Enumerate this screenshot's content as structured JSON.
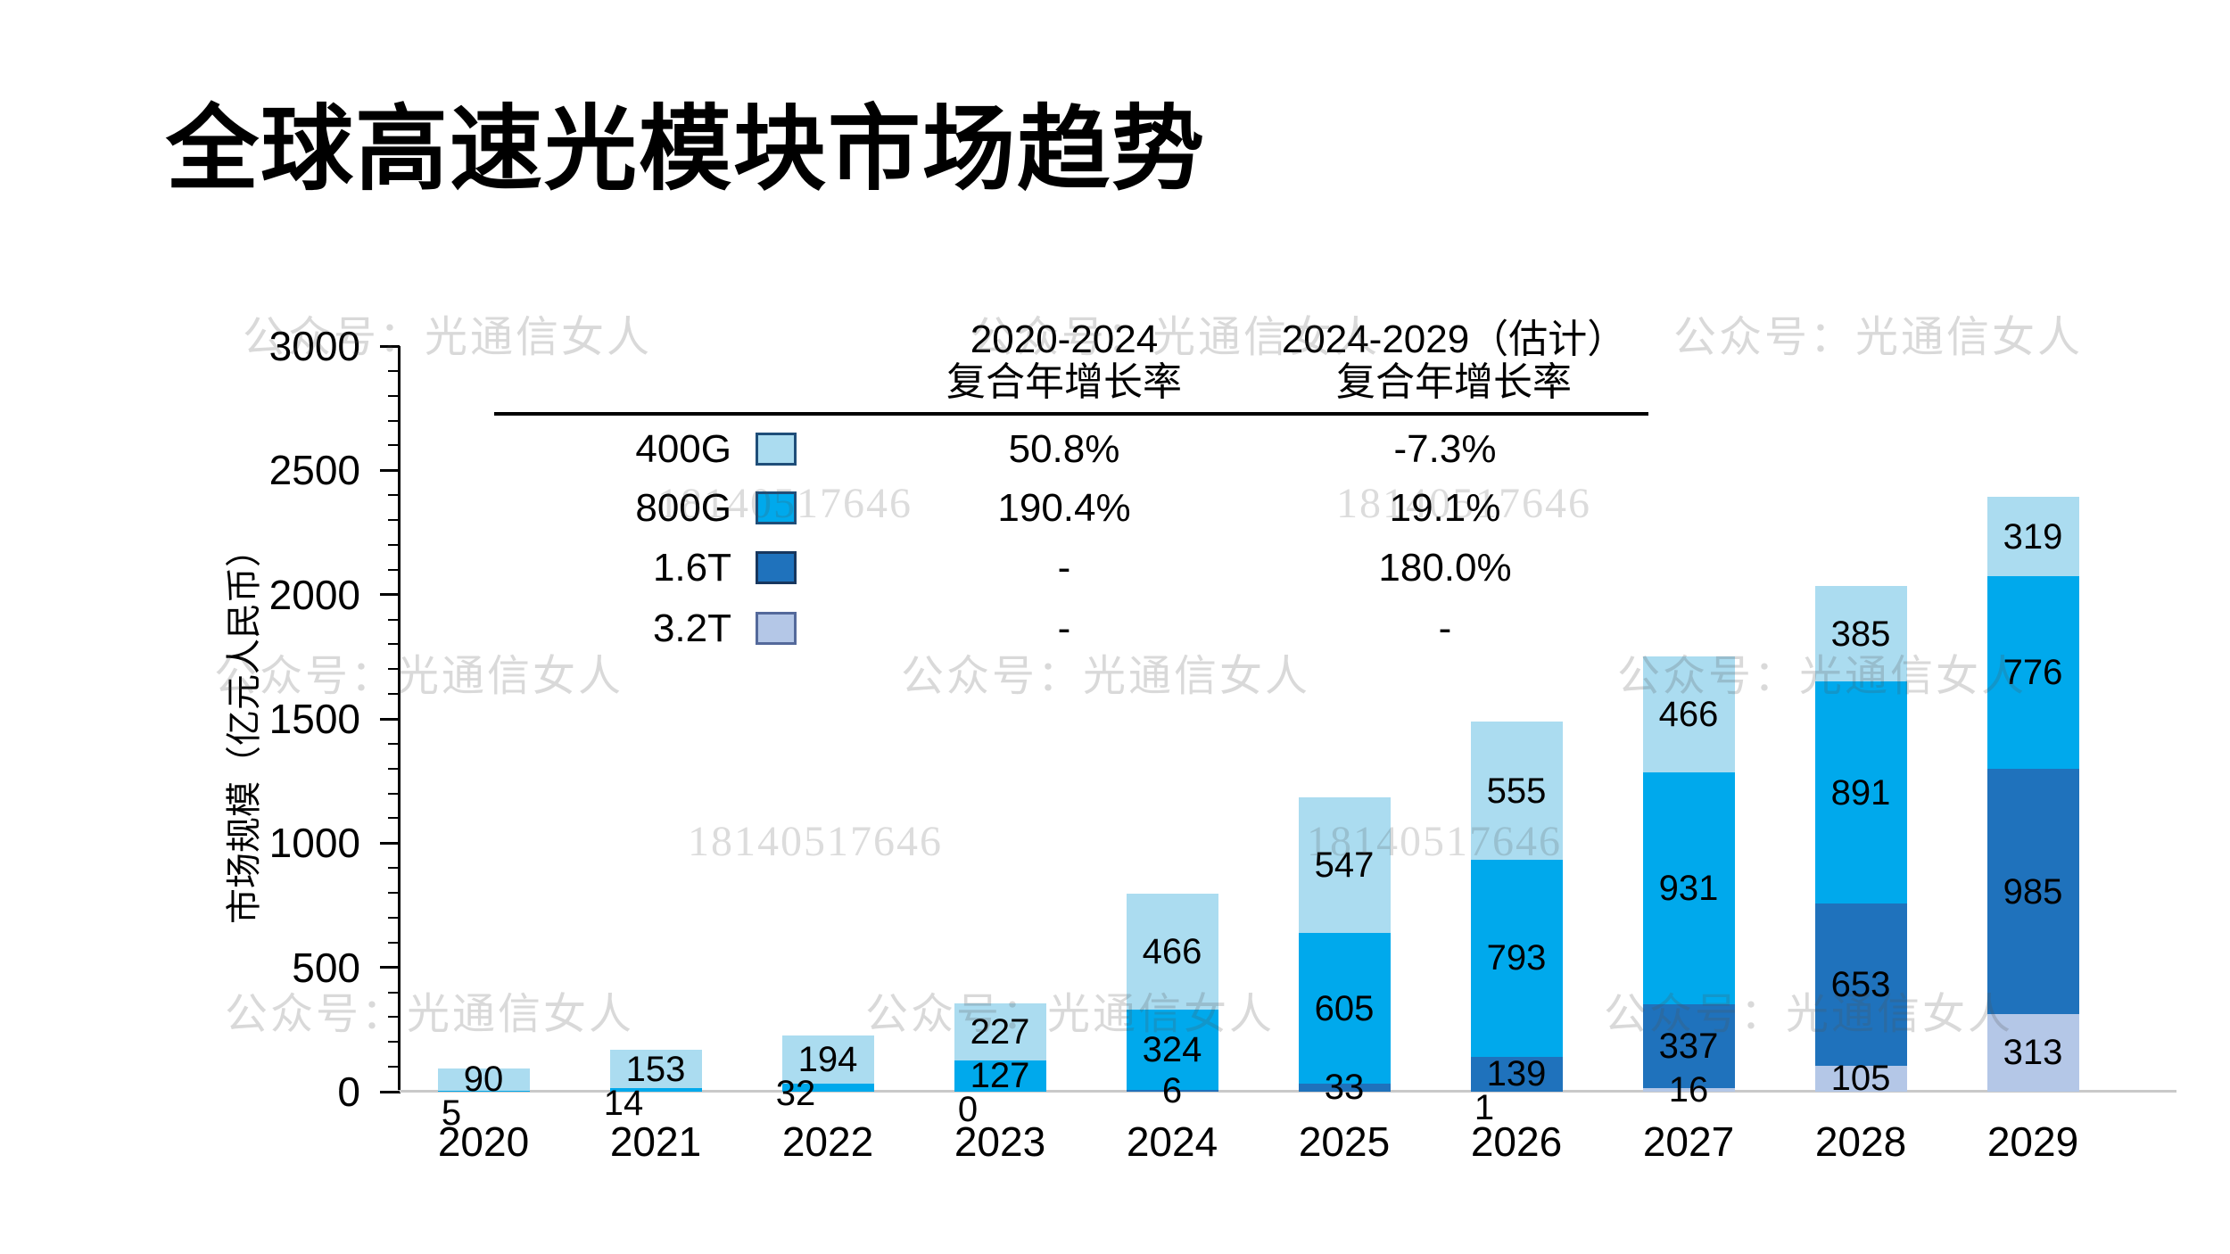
{
  "title": "全球高速光模块市场趋势",
  "watermarks": {
    "wechat_text": "公众号：光通信女人",
    "phone_text": "18140517646"
  },
  "chart_data": {
    "type": "bar",
    "stacked": true,
    "title": "全球高速光模块市场趋势",
    "xlabel": "",
    "ylabel": "市场规模（亿元人民币）",
    "ylim": [
      0,
      3000
    ],
    "ytick_step": 500,
    "yminor_step": 100,
    "grid": false,
    "legend_position": "upper-left-table",
    "stack_order_bottom_to_top": [
      "3.2T",
      "1.6T",
      "800G",
      "400G"
    ],
    "categories": [
      "2020",
      "2021",
      "2022",
      "2023",
      "2024",
      "2025",
      "2026",
      "2027",
      "2028",
      "2029"
    ],
    "series": [
      {
        "name": "400G",
        "color": "#ABDCF0",
        "swatch_border": "#1F4E79",
        "values": [
          90,
          153,
          194,
          227,
          466,
          547,
          555,
          466,
          385,
          319
        ]
      },
      {
        "name": "800G",
        "color": "#00A9EC",
        "swatch_border": "#1F4E79",
        "values": [
          5,
          14,
          32,
          127,
          324,
          605,
          793,
          931,
          891,
          776
        ]
      },
      {
        "name": "1.6T",
        "color": "#1F72BC",
        "swatch_border": "#17375E",
        "values": [
          null,
          null,
          null,
          0,
          6,
          33,
          139,
          337,
          653,
          985
        ]
      },
      {
        "name": "3.2T",
        "color": "#B4C7E7",
        "swatch_border": "#54699B",
        "values": [
          null,
          null,
          null,
          null,
          null,
          null,
          1,
          16,
          105,
          313
        ]
      }
    ],
    "growth_table": {
      "columns": [
        "2020-2024",
        "2024-2029（估计）"
      ],
      "column_subtitle": "复合年增长率",
      "rows": [
        {
          "series": "400G",
          "values": [
            "50.8%",
            "-7.3%"
          ]
        },
        {
          "series": "800G",
          "values": [
            "190.4%",
            "19.1%"
          ]
        },
        {
          "series": "1.6T",
          "values": [
            "-",
            "180.0%"
          ]
        },
        {
          "series": "3.2T",
          "values": [
            "-",
            "-"
          ]
        }
      ]
    }
  }
}
